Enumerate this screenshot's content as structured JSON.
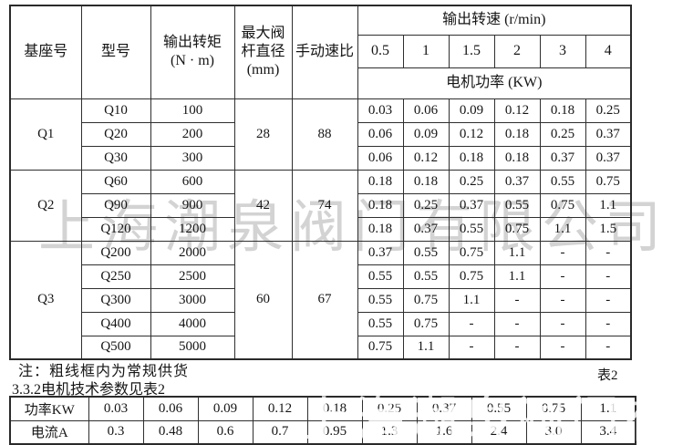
{
  "watermarks": {
    "main": {
      "text": "上海潮泉阀门有限公司",
      "color": "#a8a8a8"
    },
    "bottom": {
      "text": "上海潮泉阀门有限公司",
      "color": "#ffffff"
    }
  },
  "main_table": {
    "headers": {
      "base": "基座号",
      "model": "型号",
      "torque": "输出转矩\n(N · m)",
      "stem": "最大阀\n杆直径\n(mm)",
      "ratio": "手动速比",
      "speed_title": "输出转速 (r/min)",
      "power_title": "电机功率 (KW)",
      "speeds": [
        "0.5",
        "1",
        "1.5",
        "2",
        "3",
        "4"
      ]
    },
    "groups": [
      {
        "base": "Q1",
        "stem": "28",
        "ratio": "88",
        "rows": [
          {
            "model": "Q10",
            "torque": "100",
            "powers": [
              "0.03",
              "0.06",
              "0.09",
              "0.12",
              "0.18",
              "0.25"
            ]
          },
          {
            "model": "Q20",
            "torque": "200",
            "powers": [
              "0.06",
              "0.09",
              "0.12",
              "0.18",
              "0.25",
              "0.37"
            ]
          },
          {
            "model": "Q30",
            "torque": "300",
            "powers": [
              "0.06",
              "0.12",
              "0.18",
              "0.18",
              "0.37",
              "0.37"
            ]
          }
        ]
      },
      {
        "base": "Q2",
        "stem": "42",
        "ratio": "74",
        "rows": [
          {
            "model": "Q60",
            "torque": "600",
            "powers": [
              "0.18",
              "0.18",
              "0.25",
              "0.37",
              "0.55",
              "0.75"
            ]
          },
          {
            "model": "Q90",
            "torque": "900",
            "powers": [
              "0.18",
              "0.25",
              "0.37",
              "0.55",
              "0.75",
              "1.1"
            ]
          },
          {
            "model": "Q120",
            "torque": "1200",
            "powers": [
              "0.18",
              "0.37",
              "0.55",
              "0.75",
              "1.1",
              "1.5"
            ]
          }
        ]
      },
      {
        "base": "Q3",
        "stem": "60",
        "ratio": "67",
        "rows": [
          {
            "model": "Q200",
            "torque": "2000",
            "powers": [
              "0.37",
              "0.55",
              "0.75",
              "1.1",
              "-",
              "-"
            ]
          },
          {
            "model": "Q250",
            "torque": "2500",
            "powers": [
              "0.55",
              "0.55",
              "0.75",
              "1.1",
              "-",
              "-"
            ]
          },
          {
            "model": "Q300",
            "torque": "3000",
            "powers": [
              "0.55",
              "0.75",
              "1.1",
              "-",
              "-",
              "-"
            ]
          },
          {
            "model": "Q400",
            "torque": "4000",
            "powers": [
              "0.55",
              "0.75",
              "-",
              "-",
              "-",
              "-"
            ]
          },
          {
            "model": "Q500",
            "torque": "5000",
            "powers": [
              "0.75",
              "1.1",
              "-",
              "-",
              "-",
              "-"
            ]
          }
        ]
      }
    ],
    "thick_boxes": [
      {
        "col": 1,
        "from": 0,
        "to": 5
      },
      {
        "col": 0,
        "from": 6,
        "to": 10
      }
    ]
  },
  "notes": {
    "line1": "注：粗线框内为常规供货",
    "line2": "3.3.2电机技术参数见表2"
  },
  "table2": {
    "label": "表2",
    "rows": [
      {
        "label": "功率KW",
        "values": [
          "0.03",
          "0.06",
          "0.09",
          "0.12",
          "0.18",
          "0.25",
          "0.37",
          "0.55",
          "0.75",
          "1.1"
        ]
      },
      {
        "label": "电流A",
        "values": [
          "0.3",
          "0.48",
          "0.6",
          "0.7",
          "0.95",
          "1.3",
          "1.6",
          "2.4",
          "3.0",
          "3.4"
        ]
      }
    ]
  }
}
